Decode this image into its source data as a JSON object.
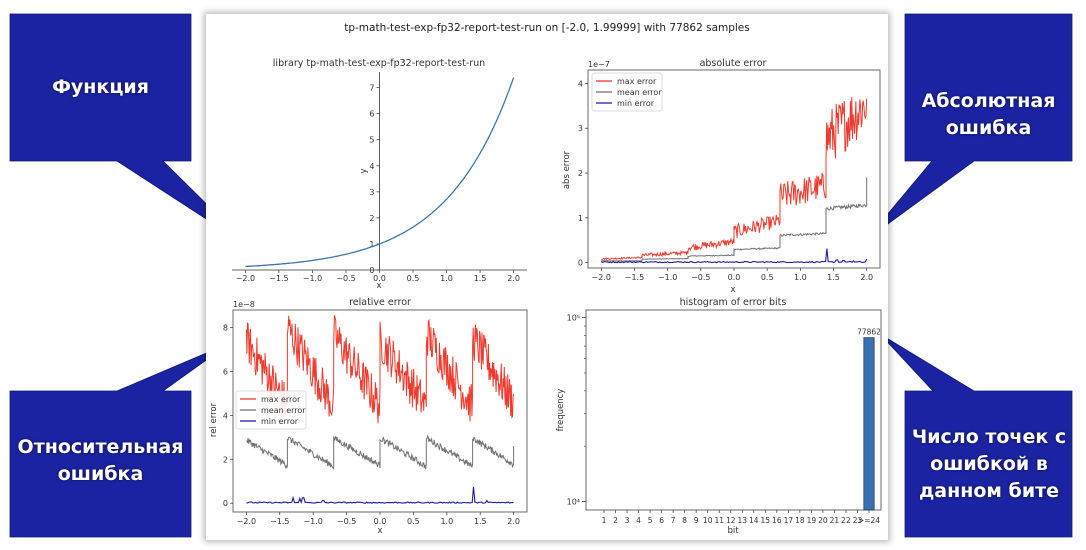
{
  "figure": {
    "title": "tp-math-test-exp-fp32-report-test-run on [-2.0, 1.99999] with 77862 samples"
  },
  "callouts": {
    "function": "Функция",
    "absolute": "Абсолютная ошибка",
    "relative": "Относительная ошибка",
    "histogram": "Число точек с ошибкой в данном бите",
    "fill_color": "#1c23a3"
  },
  "legend": {
    "max": "max error",
    "mean": "mean error",
    "min": "min error"
  },
  "colors": {
    "function_line": "#3b75af",
    "max_error": "#f03a2e",
    "mean_error": "#727272",
    "min_error": "#1a1fa8",
    "bar": "#3871b1"
  },
  "chart_data": [
    {
      "type": "line",
      "title": "library tp-math-test-exp-fp32-report-test-run",
      "xlabel": "x",
      "ylabel": "y",
      "function": "exp(x)",
      "xlim": [
        -2.2,
        2.2
      ],
      "ylim": [
        0,
        7.6
      ],
      "xticks": [
        -2.0,
        -1.5,
        -1.0,
        -0.5,
        0.0,
        0.5,
        1.0,
        1.5,
        2.0
      ],
      "yticks": [
        0,
        1,
        2,
        3,
        4,
        5,
        6,
        7
      ],
      "x": [
        -2.0,
        -1.5,
        -1.0,
        -0.5,
        0.0,
        0.5,
        1.0,
        1.5,
        2.0
      ],
      "y": [
        0.135,
        0.223,
        0.368,
        0.607,
        1.0,
        1.649,
        2.718,
        4.482,
        7.389
      ],
      "spines": "centered",
      "grid": false
    },
    {
      "type": "line",
      "title": "absolute error",
      "xlabel": "x",
      "ylabel": "abs error",
      "y_multiplier": "1e−7",
      "xlim": [
        -2.2,
        2.2
      ],
      "ylim": [
        -0.12,
        4.3
      ],
      "xticks": [
        -2.0,
        -1.5,
        -1.0,
        -0.5,
        0.0,
        0.5,
        1.0,
        1.5,
        2.0
      ],
      "yticks": [
        0,
        1,
        2,
        3,
        4
      ],
      "legend_position": "upper-left",
      "series": [
        {
          "name": "max error",
          "x": [
            -2.0,
            -1.386,
            -1.386,
            -0.693,
            -0.693,
            0.0,
            0.0,
            0.693,
            0.693,
            1.386,
            1.386,
            2.0
          ],
          "values": [
            0.09,
            0.12,
            0.18,
            0.24,
            0.37,
            0.5,
            0.75,
            1.0,
            1.6,
            1.85,
            3.0,
            3.8
          ],
          "noise": [
            0.02,
            0.05,
            0.1,
            0.2,
            0.4,
            0.8
          ]
        },
        {
          "name": "mean error",
          "x": [
            -2.0,
            -1.386,
            -1.386,
            -0.693,
            -0.693,
            0.0,
            0.0,
            0.693,
            0.693,
            1.386,
            1.386,
            2.0
          ],
          "values": [
            0.04,
            0.04,
            0.08,
            0.09,
            0.15,
            0.17,
            0.3,
            0.33,
            0.62,
            0.66,
            1.22,
            1.3
          ],
          "noise": [
            0.005,
            0.01,
            0.02,
            0.03,
            0.05,
            0.08
          ],
          "end_spike": 1.9
        },
        {
          "name": "min error",
          "x": [
            -2.0,
            2.0
          ],
          "values": [
            0.0,
            0.0
          ],
          "spikes": [
            [
              1.4,
              0.31
            ],
            [
              1.55,
              0.06
            ],
            [
              1.65,
              0.05
            ],
            [
              1.8,
              0.04
            ],
            [
              2.0,
              0.08
            ]
          ]
        }
      ]
    },
    {
      "type": "line",
      "title": "relative error",
      "xlabel": "x",
      "ylabel": "rel error",
      "y_multiplier": "1e−8",
      "xlim": [
        -2.2,
        2.2
      ],
      "ylim": [
        -0.4,
        8.8
      ],
      "xticks": [
        -2.0,
        -1.5,
        -1.0,
        -0.5,
        0.0,
        0.5,
        1.0,
        1.5,
        2.0
      ],
      "yticks": [
        0,
        2,
        4,
        6,
        8
      ],
      "legend_position": "center-left",
      "series": [
        {
          "name": "max error",
          "period_starts": [
            -2.0,
            -1.386,
            -0.693,
            0.0,
            0.693,
            1.386
          ],
          "start_values": [
            7.6,
            8.2,
            7.9,
            7.6,
            7.9,
            7.7
          ],
          "end_values": [
            4.6,
            4.6,
            4.6,
            4.6,
            4.6,
            4.8
          ],
          "noise": 1.2
        },
        {
          "name": "mean error",
          "period_starts": [
            -2.0,
            -1.386,
            -0.693,
            0.0,
            0.693,
            1.386
          ],
          "start_values": [
            2.9,
            3.0,
            3.0,
            3.0,
            3.0,
            3.0
          ],
          "end_values": [
            1.75,
            1.7,
            1.75,
            1.7,
            1.7,
            1.8
          ],
          "noise": 0.18,
          "end_spike": 2.6
        },
        {
          "name": "min error",
          "x": [
            -2.0,
            2.0
          ],
          "values": [
            0.0,
            0.0
          ],
          "spikes": [
            [
              -1.3,
              0.25
            ],
            [
              -1.2,
              0.22
            ],
            [
              -1.15,
              0.25
            ],
            [
              -0.85,
              0.12
            ],
            [
              1.4,
              0.75
            ],
            [
              1.6,
              0.12
            ]
          ]
        }
      ]
    },
    {
      "type": "bar",
      "title": "histogram of error bits",
      "xlabel": "bit",
      "ylabel": "frequency",
      "yscale": "log",
      "ylim": [
        9000,
        110000
      ],
      "yticks": [
        "10⁴",
        "10⁵"
      ],
      "categories": [
        "1",
        "2",
        "3",
        "4",
        "5",
        "6",
        "7",
        "8",
        "9",
        "10",
        "11",
        "12",
        "13",
        "14",
        "15",
        "16",
        "17",
        "18",
        "19",
        "20",
        "21",
        "22",
        "23",
        ">=24"
      ],
      "values": [
        0,
        0,
        0,
        0,
        0,
        0,
        0,
        0,
        0,
        0,
        0,
        0,
        0,
        0,
        0,
        0,
        0,
        0,
        0,
        0,
        0,
        0,
        0,
        77862
      ],
      "data_labels": [
        "77862"
      ]
    }
  ]
}
